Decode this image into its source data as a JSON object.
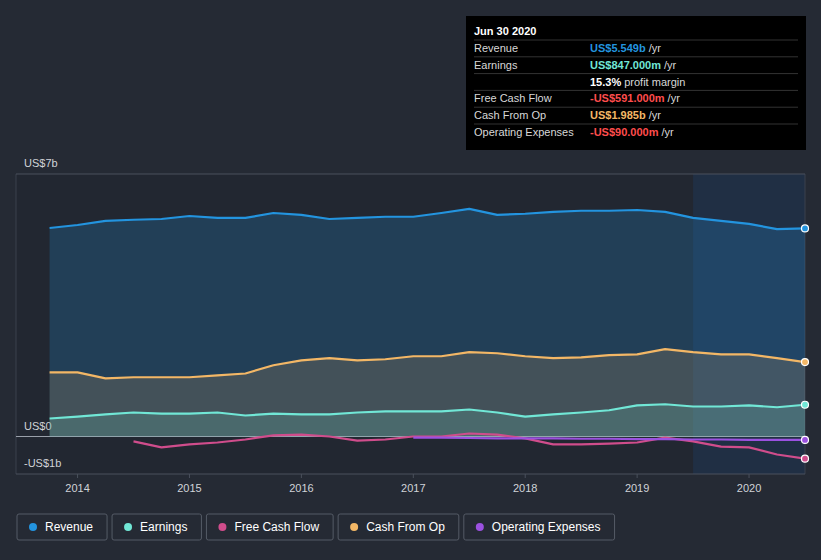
{
  "chart_data": {
    "type": "area",
    "x": [
      2013.75,
      2014.0,
      2014.25,
      2014.5,
      2014.75,
      2015.0,
      2015.25,
      2015.5,
      2015.75,
      2016.0,
      2016.25,
      2016.5,
      2016.75,
      2017.0,
      2017.25,
      2017.5,
      2017.75,
      2018.0,
      2018.25,
      2018.5,
      2018.75,
      2019.0,
      2019.25,
      2019.5,
      2019.75,
      2020.0,
      2020.25,
      2020.5
    ],
    "series": [
      {
        "name": "Revenue",
        "color": "#2394df",
        "type": "area",
        "values": [
          5.56,
          5.64,
          5.75,
          5.78,
          5.8,
          5.88,
          5.83,
          5.83,
          5.96,
          5.91,
          5.8,
          5.83,
          5.86,
          5.86,
          5.96,
          6.07,
          5.91,
          5.94,
          5.99,
          6.02,
          6.02,
          6.04,
          5.99,
          5.83,
          5.75,
          5.67,
          5.53,
          5.549
        ]
      },
      {
        "name": "Earnings",
        "color": "#71e7d6",
        "type": "area",
        "values": [
          0.48,
          0.53,
          0.59,
          0.64,
          0.61,
          0.61,
          0.64,
          0.56,
          0.61,
          0.59,
          0.59,
          0.64,
          0.67,
          0.67,
          0.67,
          0.72,
          0.64,
          0.53,
          0.59,
          0.64,
          0.7,
          0.83,
          0.86,
          0.8,
          0.8,
          0.83,
          0.78,
          0.847
        ]
      },
      {
        "name": "Free Cash Flow",
        "color": "#d04d8c",
        "type": "line",
        "values": [
          null,
          null,
          null,
          -0.13,
          -0.29,
          -0.21,
          -0.16,
          -0.08,
          0.03,
          0.05,
          0.0,
          -0.11,
          -0.08,
          0.0,
          0.0,
          0.08,
          0.05,
          -0.05,
          -0.21,
          -0.21,
          -0.19,
          -0.16,
          -0.03,
          -0.13,
          -0.27,
          -0.29,
          -0.48,
          -0.591
        ]
      },
      {
        "name": "Cash From Op",
        "color": "#f3b766",
        "type": "area",
        "values": [
          1.71,
          1.71,
          1.55,
          1.58,
          1.58,
          1.58,
          1.63,
          1.68,
          1.9,
          2.03,
          2.09,
          2.03,
          2.06,
          2.14,
          2.14,
          2.25,
          2.22,
          2.14,
          2.09,
          2.11,
          2.17,
          2.19,
          2.33,
          2.25,
          2.19,
          2.19,
          2.09,
          1.985
        ]
      },
      {
        "name": "Operating Expenses",
        "color": "#9b51e0",
        "type": "line",
        "values": [
          null,
          null,
          null,
          null,
          null,
          null,
          null,
          null,
          null,
          null,
          null,
          null,
          null,
          -0.03,
          -0.03,
          -0.04,
          -0.05,
          -0.05,
          -0.05,
          -0.06,
          -0.06,
          -0.07,
          -0.07,
          -0.08,
          -0.08,
          -0.09,
          -0.09,
          -0.09
        ]
      }
    ],
    "xlim": [
      2013.45,
      2020.5
    ],
    "xticks": [
      2014,
      2015,
      2016,
      2017,
      2018,
      2019,
      2020
    ],
    "ylim": [
      -1,
      7
    ],
    "yticks": [
      {
        "value": 7,
        "label": "US$7b"
      },
      {
        "value": 0,
        "label": "US$0"
      },
      {
        "value": -1,
        "label": "-US$1b"
      }
    ],
    "grid": true,
    "legend": "bottom",
    "highlight_range": [
      2019.5,
      2020.5
    ],
    "tooltip": {
      "title": "Jun 30 2020",
      "rows": [
        {
          "label": "Revenue",
          "value": "US$5.549b",
          "unit": "/yr",
          "color": "#2394df"
        },
        {
          "label": "Earnings",
          "value": "US$847.000m",
          "unit": "/yr",
          "color": "#71e7d6"
        },
        {
          "value": "15.3%",
          "unit": "profit margin",
          "color": "#ffffff"
        },
        {
          "label": "Free Cash Flow",
          "value": "-US$591.000m",
          "unit": "/yr",
          "color": "#ff4d4d"
        },
        {
          "label": "Cash From Op",
          "value": "US$1.985b",
          "unit": "/yr",
          "color": "#f3b766"
        },
        {
          "label": "Operating Expenses",
          "value": "-US$90.000m",
          "unit": "/yr",
          "color": "#ff4d4d"
        }
      ]
    }
  }
}
